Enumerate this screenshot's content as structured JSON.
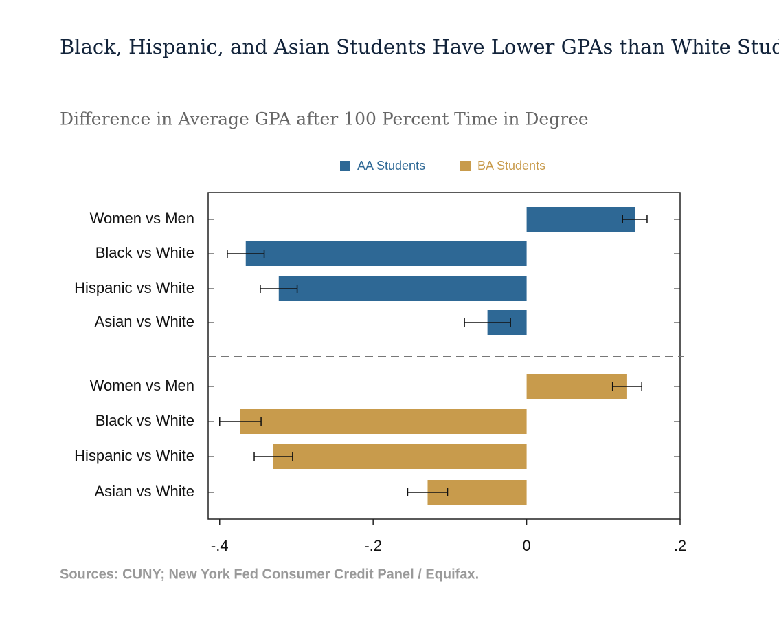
{
  "chart_data": {
    "type": "bar",
    "orientation": "horizontal",
    "title": "Black, Hispanic, and Asian Students Have Lower GPAs than White Students",
    "subtitle": "Difference in Average GPA after 100 Percent Time in Degree",
    "source": "Sources: CUNY; New York Fed Consumer Credit Panel / Equifax.",
    "categories": [
      "Women vs Men",
      "Black vs White",
      "Hispanic vs White",
      "Asian vs White"
    ],
    "series": [
      {
        "name": "AA Students",
        "color": "#2e6895",
        "values": [
          0.141,
          -0.366,
          -0.323,
          -0.051
        ],
        "errors": [
          0.016,
          0.024,
          0.024,
          0.03
        ]
      },
      {
        "name": "BA Students",
        "color": "#c89b4c",
        "values": [
          0.131,
          -0.373,
          -0.33,
          -0.129
        ],
        "errors": [
          0.019,
          0.027,
          0.025,
          0.026
        ]
      }
    ],
    "xlim": [
      -0.415,
      0.2
    ],
    "xticks": [
      {
        "value": -0.4,
        "label": "-.4"
      },
      {
        "value": -0.2,
        "label": "-.2"
      },
      0,
      {
        "value": 0.2,
        "label": ".2"
      }
    ],
    "legend": "top"
  }
}
